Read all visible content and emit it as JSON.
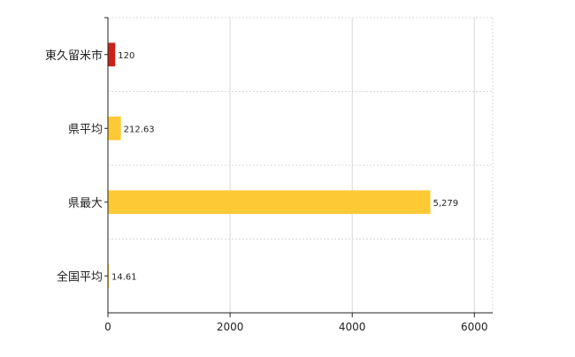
{
  "chart_data": {
    "type": "bar",
    "orientation": "horizontal",
    "categories": [
      "東久留米市",
      "県平均",
      "県最大",
      "全国平均"
    ],
    "values": [
      120,
      212.63,
      5279,
      14.61
    ],
    "value_labels": [
      "120",
      "212.63",
      "5,279",
      "14.61"
    ],
    "bar_colors": [
      "#c8231b",
      "#fdc935",
      "#fdc935",
      "#fdc935"
    ],
    "xlim": [
      0,
      6300
    ],
    "x_ticks": [
      0,
      2000,
      4000,
      6000
    ],
    "x_tick_labels": [
      "0",
      "2000",
      "4000",
      "6000"
    ],
    "grid": true,
    "title": "",
    "xlabel": "",
    "ylabel": ""
  },
  "colors": {
    "highlight": "#c8231b",
    "bar": "#fdc935",
    "grid": "#d8d8d8",
    "axis": "#222222"
  }
}
